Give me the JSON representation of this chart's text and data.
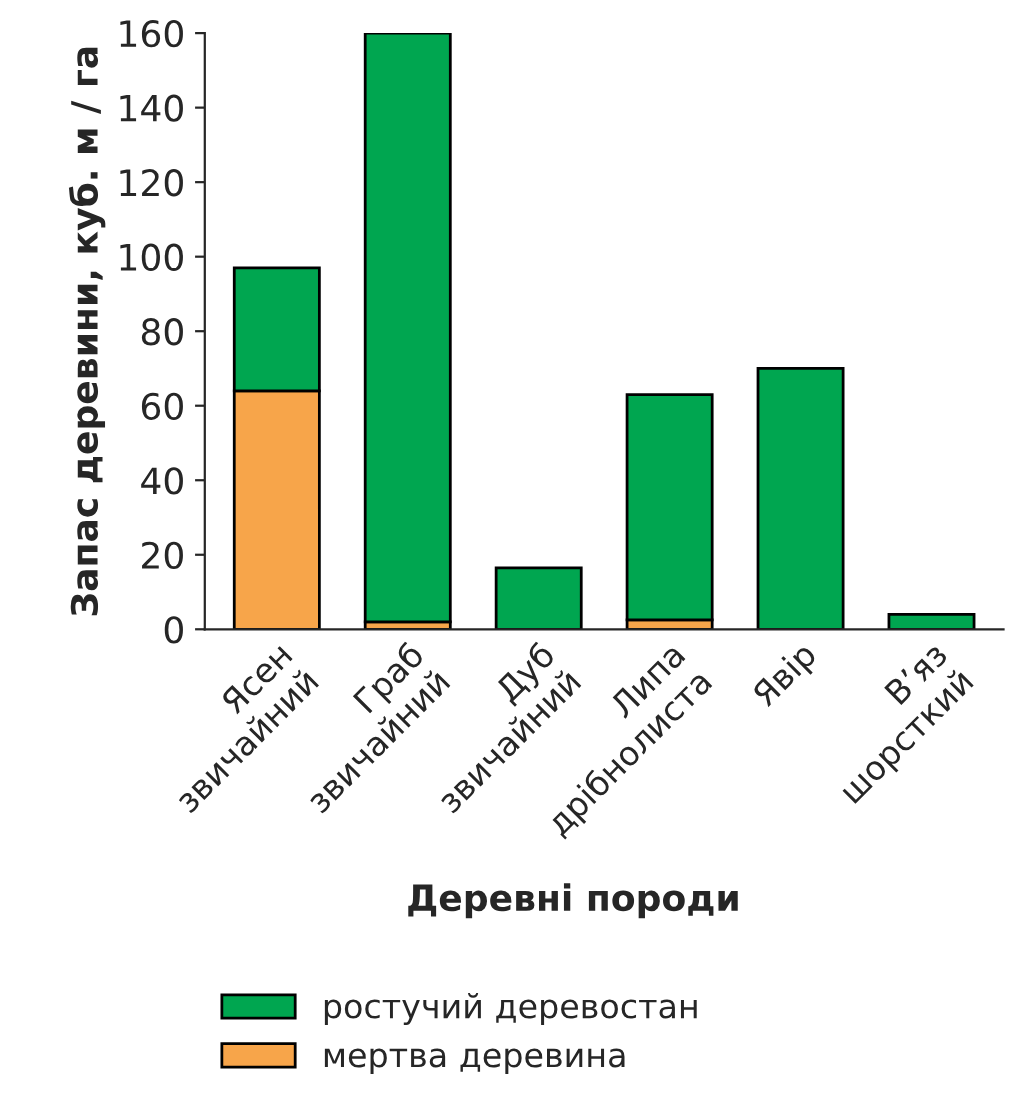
{
  "chart_data": {
    "type": "bar",
    "stacked": true,
    "xlabel": "Деревні породи",
    "ylabel": "Запас деревини, куб. м / га",
    "categories": [
      "Ясен\nзвичайний",
      "Граб\nзвичайний",
      "Дуб\nзвичайний",
      "Липа\nдрібнолиста",
      "Явір",
      "В’яз\nшорсткий"
    ],
    "series": [
      {
        "name": "мертва деревина",
        "color": "#f7a54a",
        "values": [
          64,
          2,
          0,
          2.5,
          0,
          0
        ]
      },
      {
        "name": "ростучий деревостан",
        "color": "#00a650",
        "values": [
          33,
          158,
          16.5,
          60.5,
          70,
          4
        ]
      }
    ],
    "ylim": [
      0,
      160
    ],
    "yticks": [
      0,
      20,
      40,
      60,
      80,
      100,
      120,
      140,
      160
    ],
    "grid": false,
    "legend": "bottom"
  }
}
